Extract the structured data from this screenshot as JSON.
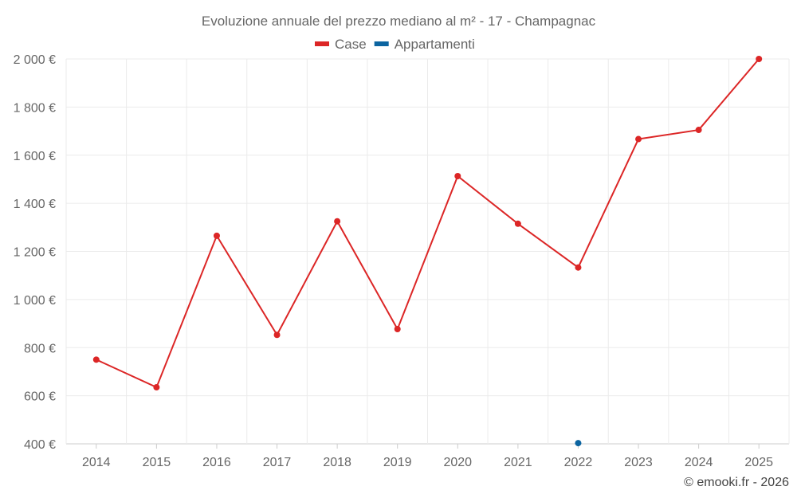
{
  "chart_data": {
    "type": "line",
    "title": "Evoluzione annuale del prezzo mediano al m² - 17 - Champagnac",
    "categories": [
      "2014",
      "2015",
      "2016",
      "2017",
      "2018",
      "2019",
      "2020",
      "2021",
      "2022",
      "2023",
      "2024",
      "2025"
    ],
    "series": [
      {
        "name": "Case",
        "color": "#dc2626",
        "values": [
          750,
          635,
          1265,
          853,
          1325,
          877,
          1513,
          1315,
          1133,
          1667,
          1705,
          2000
        ]
      },
      {
        "name": "Appartamenti",
        "color": "#0b64a0",
        "values": [
          null,
          null,
          null,
          null,
          null,
          null,
          null,
          null,
          403,
          null,
          null,
          null
        ]
      }
    ],
    "ylim": [
      400,
      2000
    ],
    "yticks": [
      400,
      600,
      800,
      1000,
      1200,
      1400,
      1600,
      1800,
      2000
    ],
    "ytick_labels": [
      "400 €",
      "600 €",
      "800 €",
      "1 000 €",
      "1 200 €",
      "1 400 €",
      "1 600 €",
      "1 800 €",
      "2 000 €"
    ],
    "grid": true,
    "legend": "top-center",
    "xlabel": "",
    "ylabel": ""
  },
  "credit": "© emooki.fr - 2026"
}
